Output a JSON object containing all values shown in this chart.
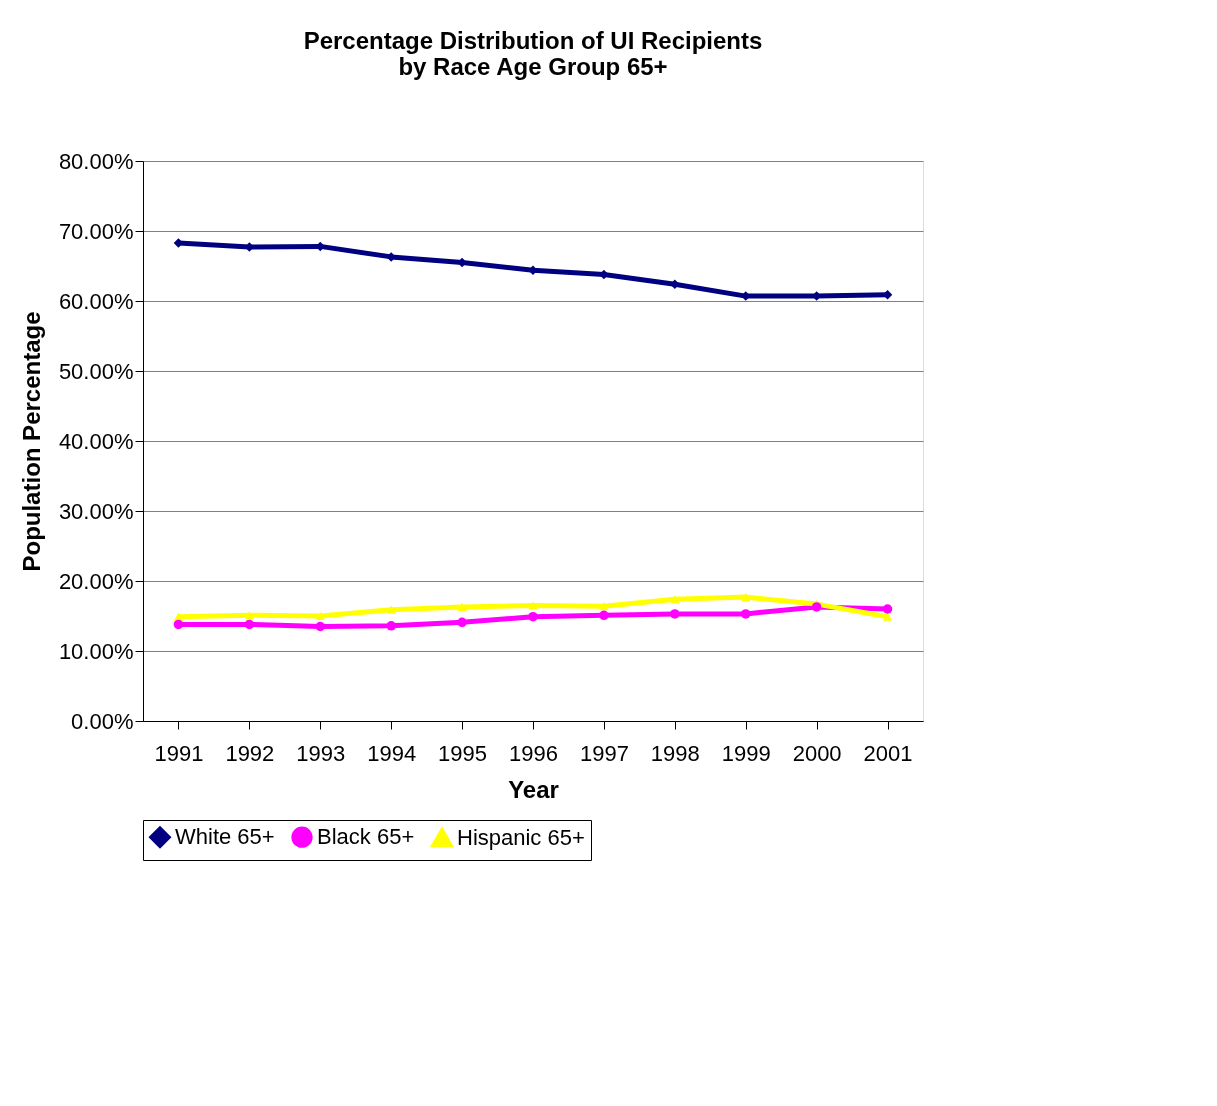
{
  "chart_data": {
    "type": "line",
    "title": [
      "Percentage Distribution of UI Recipients",
      "by Race Age Group 65+"
    ],
    "xlabel": "Year",
    "ylabel": "Population Percentage",
    "categories": [
      "1991",
      "1992",
      "1993",
      "1994",
      "1995",
      "1996",
      "1997",
      "1998",
      "1999",
      "2000",
      "2001"
    ],
    "series": [
      {
        "name": "White 65+",
        "color": "#000080",
        "marker": "diamond",
        "values": [
          68.3,
          67.7,
          67.8,
          66.3,
          65.5,
          64.4,
          63.8,
          62.4,
          60.7,
          60.7,
          60.9
        ]
      },
      {
        "name": "Black 65+",
        "color": "#ff00ff",
        "marker": "circle",
        "values": [
          13.8,
          13.8,
          13.5,
          13.6,
          14.1,
          14.9,
          15.1,
          15.3,
          15.3,
          16.3,
          16.0
        ]
      },
      {
        "name": "Hispanic 65+",
        "color": "#ffff00",
        "marker": "triangle",
        "values": [
          14.9,
          15.1,
          15.0,
          15.9,
          16.3,
          16.5,
          16.4,
          17.4,
          17.7,
          16.7,
          14.9
        ]
      }
    ],
    "ylim": [
      0,
      80
    ],
    "yticks": [
      {
        "value": 0,
        "label": "0.00%"
      },
      {
        "value": 10,
        "label": "10.00%"
      },
      {
        "value": 20,
        "label": "20.00%"
      },
      {
        "value": 30,
        "label": "30.00%"
      },
      {
        "value": 40,
        "label": "40.00%"
      },
      {
        "value": 50,
        "label": "50.00%"
      },
      {
        "value": 60,
        "label": "60.00%"
      },
      {
        "value": 70,
        "label": "70.00%"
      },
      {
        "value": 80,
        "label": "80.00%"
      }
    ],
    "grid": "y",
    "legend": "bottom",
    "line_style": "solid"
  }
}
